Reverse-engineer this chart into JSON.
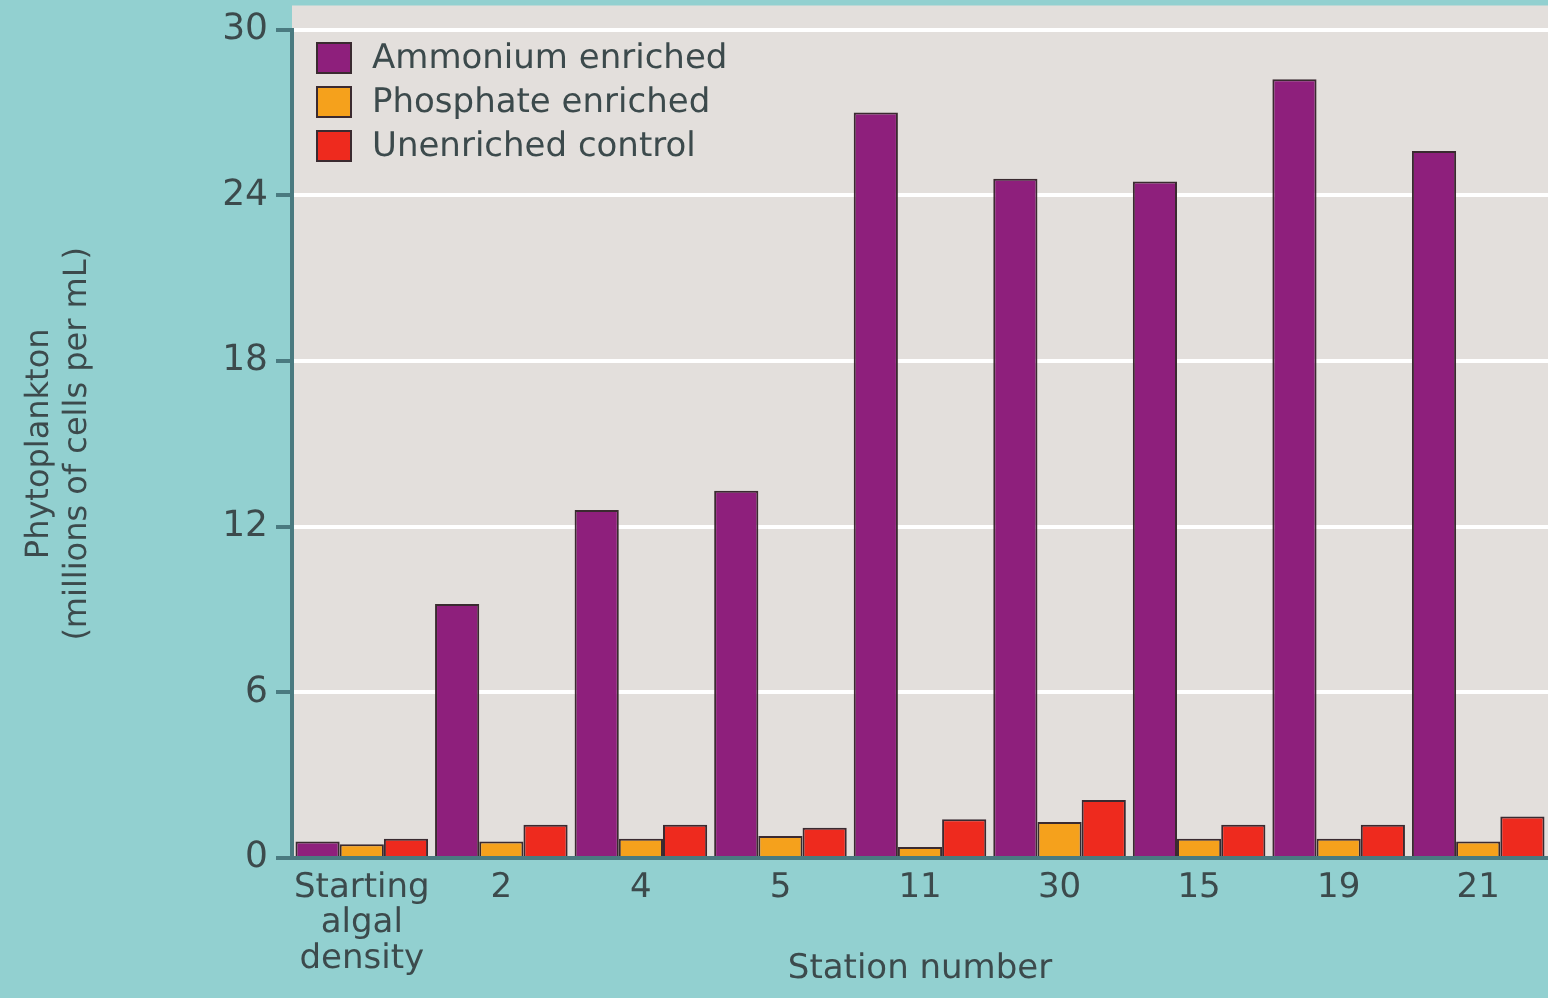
{
  "chart_data": {
    "type": "bar",
    "xlabel": "Station number",
    "ylabel": "Phytoplankton\n(millions of cells per mL)",
    "categories": [
      "Starting algal density",
      "2",
      "4",
      "5",
      "11",
      "30",
      "15",
      "19",
      "21"
    ],
    "series": [
      {
        "name": "Ammonium enriched",
        "color": "#8e1f7c",
        "values": [
          0.6,
          9.2,
          12.6,
          13.3,
          27.0,
          24.6,
          24.5,
          28.2,
          25.6
        ]
      },
      {
        "name": "Phosphate enriched",
        "color": "#f5a11c",
        "values": [
          0.5,
          0.6,
          0.7,
          0.8,
          0.4,
          1.3,
          0.7,
          0.7,
          0.6
        ]
      },
      {
        "name": "Unenriched control",
        "color": "#ee2a1e",
        "values": [
          0.7,
          1.2,
          1.2,
          1.1,
          1.4,
          2.1,
          1.2,
          1.2,
          1.5
        ]
      }
    ],
    "ylim": [
      0,
      30
    ],
    "yticks": [
      0,
      6,
      12,
      18,
      24,
      30
    ],
    "grid": "y",
    "legend": "top left"
  }
}
